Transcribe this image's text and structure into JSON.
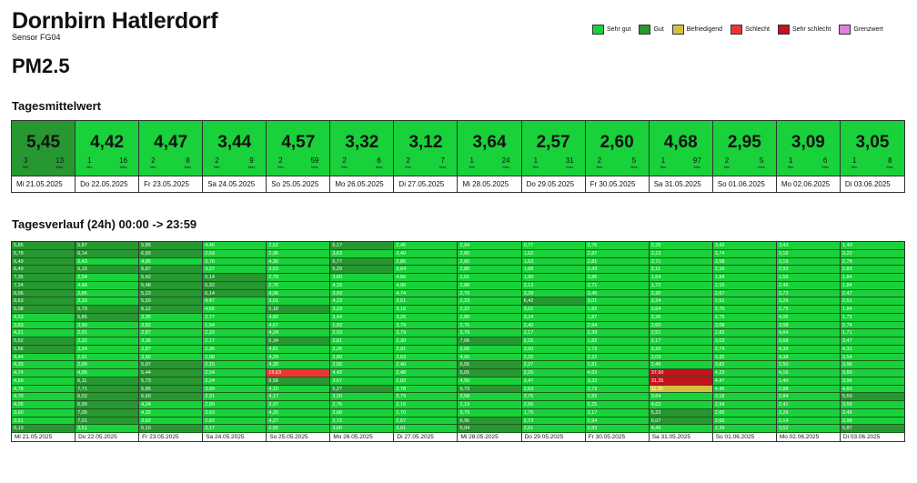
{
  "header": {
    "title": "Dornbirn Hatlerdorf",
    "sensor": "Sensor FG04",
    "metric": "PM2.5"
  },
  "legend": [
    {
      "label": "Sehr gut",
      "color": "#19d13a"
    },
    {
      "label": "Gut",
      "color": "#279731"
    },
    {
      "label": "Befriedigend",
      "color": "#d6bf3e"
    },
    {
      "label": "Schlecht",
      "color": "#ef3434"
    },
    {
      "label": "Sehr schlecht",
      "color": "#c4121f"
    },
    {
      "label": "Grenzwert",
      "color": "#e27ee0"
    }
  ],
  "daily": {
    "heading": "Tagesmittelwert",
    "min_label": "Min",
    "max_label": "Max",
    "days": [
      {
        "label": "Mi 21.05.2025",
        "value": "5,45",
        "min": "3",
        "max": "13",
        "level": "gut"
      },
      {
        "label": "Do 22.05.2025",
        "value": "4,42",
        "min": "1",
        "max": "16",
        "level": "sehr_gut"
      },
      {
        "label": "Fr 23.05.2025",
        "value": "4,47",
        "min": "2",
        "max": "8",
        "level": "sehr_gut"
      },
      {
        "label": "Sa 24.05.2025",
        "value": "3,44",
        "min": "2",
        "max": "9",
        "level": "sehr_gut"
      },
      {
        "label": "So 25.05.2025",
        "value": "4,57",
        "min": "2",
        "max": "59",
        "level": "sehr_gut"
      },
      {
        "label": "Mo 26.05.2025",
        "value": "3,32",
        "min": "2",
        "max": "6",
        "level": "sehr_gut"
      },
      {
        "label": "Di 27.05.2025",
        "value": "3,12",
        "min": "2",
        "max": "7",
        "level": "sehr_gut"
      },
      {
        "label": "Mi 28.05.2025",
        "value": "3,64",
        "min": "1",
        "max": "24",
        "level": "sehr_gut"
      },
      {
        "label": "Do 29.05.2025",
        "value": "2,57",
        "min": "1",
        "max": "31",
        "level": "sehr_gut"
      },
      {
        "label": "Fr 30.05.2025",
        "value": "2,60",
        "min": "2",
        "max": "5",
        "level": "sehr_gut"
      },
      {
        "label": "Sa 31.05.2025",
        "value": "4,68",
        "min": "1",
        "max": "97",
        "level": "sehr_gut"
      },
      {
        "label": "So 01.06.2025",
        "value": "2,95",
        "min": "2",
        "max": "5",
        "level": "sehr_gut"
      },
      {
        "label": "Mo 02.06.2025",
        "value": "3,09",
        "min": "1",
        "max": "6",
        "level": "sehr_gut"
      },
      {
        "label": "Di 03.06.2025",
        "value": "3,05",
        "min": "1",
        "max": "8",
        "level": "sehr_gut"
      }
    ]
  },
  "hourly": {
    "heading": "Tagesverlauf (24h) 00:00 -> 23:59",
    "days": [
      {
        "label": "Mi 21.05.2025",
        "values": [
          "5,85",
          "5,79",
          "6,49",
          "6,49",
          "7,35",
          "7,24",
          "6,05",
          "9,63",
          "5,08",
          "4,53",
          "3,83",
          "4,21",
          "5,52",
          "5,56",
          "4,44",
          "4,33",
          "4,74",
          "4,69",
          "4,78",
          "4,70",
          "4,05",
          "3,60",
          "3,51",
          "6,13"
        ]
      },
      {
        "label": "Do 22.05.2025",
        "values": [
          "5,87",
          "6,14",
          "2,43",
          "5,15",
          "2,54",
          "4,48",
          "2,85",
          "3,33",
          "5,79",
          "5,85",
          "3,90",
          "2,91",
          "3,32",
          "3,34",
          "2,91",
          "2,95",
          "4,95",
          "6,11",
          "7,71",
          "6,02",
          "6,99",
          "7,05",
          "7,01",
          "3,51"
        ]
      },
      {
        "label": "Fr 23.05.2025",
        "values": [
          "5,85",
          "6,65",
          "4,85",
          "6,87",
          "5,42",
          "5,48",
          "5,23",
          "5,59",
          "6,12",
          "3,35",
          "3,82",
          "2,87",
          "3,36",
          "2,87",
          "3,80",
          "5,97",
          "5,44",
          "5,73",
          "5,85",
          "6,60",
          "4,24",
          "4,32",
          "3,62",
          "6,10"
        ]
      },
      {
        "label": "Sa 24.05.2025",
        "values": [
          "4,45",
          "2,59",
          "3,76",
          "3,37",
          "6,14",
          "6,32",
          "6,14",
          "4,47",
          "4,56",
          "2,77",
          "1,94",
          "2,33",
          "2,17",
          "2,36",
          "2,08",
          "2,15",
          "2,54",
          "2,24",
          "3,99",
          "2,31",
          "2,89",
          "3,63",
          "2,83",
          "3,17"
        ]
      },
      {
        "label": "So 25.05.2025",
        "values": [
          "2,52",
          "2,95",
          "4,30",
          "3,53",
          "2,79",
          "2,76",
          "4,06",
          "3,01",
          "5,18",
          "4,80",
          "4,67",
          "4,24",
          "5,34",
          "4,81",
          "4,29",
          "4,39",
          "18,63",
          "9,58",
          "4,15",
          "4,17",
          "3,97",
          "4,25",
          "4,27",
          "2,55"
        ]
      },
      {
        "label": "Mo 26.05.2025",
        "values": [
          "5,17",
          "3,63",
          "5,77",
          "5,29",
          "3,60",
          "4,15",
          "3,93",
          "4,23",
          "3,23",
          "3,44",
          "1,93",
          "2,03",
          "2,61",
          "2,26",
          "2,89",
          "2,55",
          "4,42",
          "3,67",
          "5,27",
          "3,20",
          "2,76",
          "2,88",
          "2,72",
          "3,00"
        ]
      },
      {
        "label": "Di 27.05.2025",
        "values": [
          "2,45",
          "3,40",
          "2,85",
          "3,64",
          "4,66",
          "4,90",
          "4,74",
          "3,61",
          "3,16",
          "3,26",
          "3,79",
          "3,79",
          "2,30",
          "2,91",
          "2,63",
          "2,40",
          "2,48",
          "2,83",
          "2,78",
          "2,79",
          "2,16",
          "1,70",
          "2,67",
          "3,01"
        ]
      },
      {
        "label": "Mi 28.05.2025",
        "values": [
          "2,94",
          "2,85",
          "2,60",
          "2,80",
          "2,61",
          "2,88",
          "2,70",
          "2,23",
          "2,22",
          "2,89",
          "2,75",
          "3,79",
          "7,06",
          "2,05",
          "4,00",
          "6,05",
          "5,05",
          "4,50",
          "9,73",
          "3,58",
          "2,19",
          "3,79",
          "6,95",
          "6,04"
        ]
      },
      {
        "label": "Do 29.05.2025",
        "values": [
          "0,77",
          "1,62",
          "1,63",
          "1,68",
          "1,90",
          "2,13",
          "3,29",
          "6,42",
          "3,01",
          "3,24",
          "2,40",
          "2,17",
          "2,15",
          "3,50",
          "2,25",
          "2,27",
          "2,26",
          "2,47",
          "2,63",
          "2,75",
          "2,56",
          "1,76",
          "2,73",
          "2,61"
        ]
      },
      {
        "label": "Fr 30.05.2025",
        "values": [
          "2,76",
          "2,87",
          "2,81",
          "2,43",
          "3,86",
          "2,71",
          "3,45",
          "3,01",
          "1,82",
          "1,87",
          "2,94",
          "2,39",
          "1,82",
          "1,73",
          "2,22",
          "2,81",
          "4,63",
          "3,32",
          "2,73",
          "2,82",
          "2,25",
          "2,17",
          "2,94",
          "2,83"
        ]
      },
      {
        "label": "Sa 31.05.2025",
        "values": [
          "2,25",
          "2,23",
          "2,71",
          "2,11",
          "1,64",
          "1,72",
          "2,30",
          "2,24",
          "2,64",
          "2,26",
          "2,60",
          "2,51",
          "2,17",
          "2,29",
          "2,03",
          "2,45",
          "37,60",
          "31,35",
          "11,36",
          "3,64",
          "4,63",
          "5,22",
          "6,07",
          "4,49"
        ]
      },
      {
        "label": "So 01.06.2025",
        "values": [
          "3,42",
          "3,74",
          "3,58",
          "2,16",
          "1,84",
          "2,15",
          "2,67",
          "2,51",
          "2,70",
          "2,75",
          "3,08",
          "2,82",
          "3,03",
          "2,74",
          "3,35",
          "3,82",
          "4,23",
          "4,47",
          "4,45",
          "3,18",
          "2,94",
          "2,65",
          "2,65",
          "2,39"
        ]
      },
      {
        "label": "Mo 02.06.2025",
        "values": [
          "3,43",
          "3,16",
          "3,19",
          "2,93",
          "1,55",
          "2,46",
          "3,73",
          "3,26",
          "2,75",
          "4,05",
          "3,08",
          "4,64",
          "3,68",
          "4,39",
          "4,38",
          "2,50",
          "4,16",
          "1,40",
          "2,88",
          "2,84",
          "2,41",
          "3,26",
          "2,14",
          "3,52"
        ]
      },
      {
        "label": "Di 03.06.2025",
        "values": [
          "1,40",
          "3,22",
          "2,78",
          "2,83",
          "1,84",
          "1,84",
          "2,47",
          "2,51",
          "1,84",
          "1,72",
          "2,74",
          "1,71",
          "3,47",
          "4,31",
          "3,54",
          "3,96",
          "3,89",
          "3,96",
          "4,83",
          "5,59",
          "3,99",
          "3,46",
          "3,98",
          "5,87"
        ]
      }
    ]
  }
}
